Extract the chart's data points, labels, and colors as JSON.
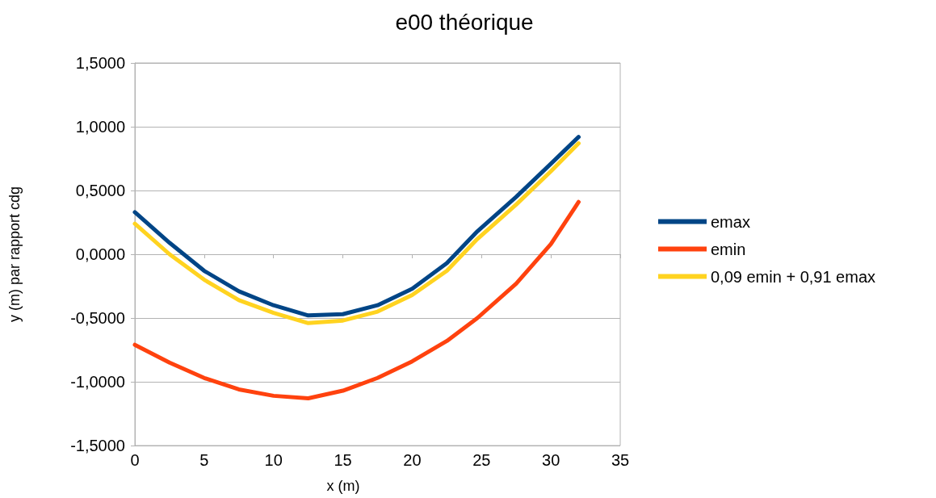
{
  "chart_data": {
    "type": "line",
    "title": "e00 théorique",
    "xlabel": "x (m)",
    "ylabel": "y (m) par rapport cdg",
    "x": [
      0,
      2.5,
      5,
      7.5,
      10,
      12.5,
      15,
      17.5,
      20,
      22.5,
      24.7,
      27.5,
      30,
      32
    ],
    "series": [
      {
        "name": "emax",
        "color": "#004586",
        "values": [
          0.33,
          0.09,
          -0.13,
          -0.29,
          -0.4,
          -0.48,
          -0.47,
          -0.4,
          -0.27,
          -0.07,
          0.18,
          0.45,
          0.71,
          0.92
        ]
      },
      {
        "name": "emin",
        "color": "#ff420e",
        "values": [
          -0.71,
          -0.85,
          -0.97,
          -1.06,
          -1.11,
          -1.13,
          -1.07,
          -0.97,
          -0.84,
          -0.68,
          -0.5,
          -0.23,
          0.08,
          0.41
        ]
      },
      {
        "name": "0,09 emin + 0,91 emax",
        "color": "#ffd320",
        "values": [
          0.24,
          0.0,
          -0.2,
          -0.36,
          -0.46,
          -0.54,
          -0.52,
          -0.45,
          -0.32,
          -0.13,
          0.12,
          0.39,
          0.65,
          0.87
        ]
      }
    ],
    "xlim": [
      0,
      35
    ],
    "xticks": [
      0,
      5,
      10,
      15,
      20,
      25,
      30,
      35
    ],
    "ylim": [
      -1.5,
      1.5
    ],
    "yticks": [
      {
        "value": -1.5,
        "label": "-1,5000"
      },
      {
        "value": -1,
        "label": "-1,0000"
      },
      {
        "value": -0.5,
        "label": "-0,5000"
      },
      {
        "value": 0,
        "label": "0,0000"
      },
      {
        "value": 0.5,
        "label": "0,5000"
      },
      {
        "value": 1,
        "label": "1,0000"
      },
      {
        "value": 1.5,
        "label": "1,5000"
      }
    ],
    "grid": "y",
    "legend": "right",
    "marker": "none",
    "line_style": "solid"
  }
}
